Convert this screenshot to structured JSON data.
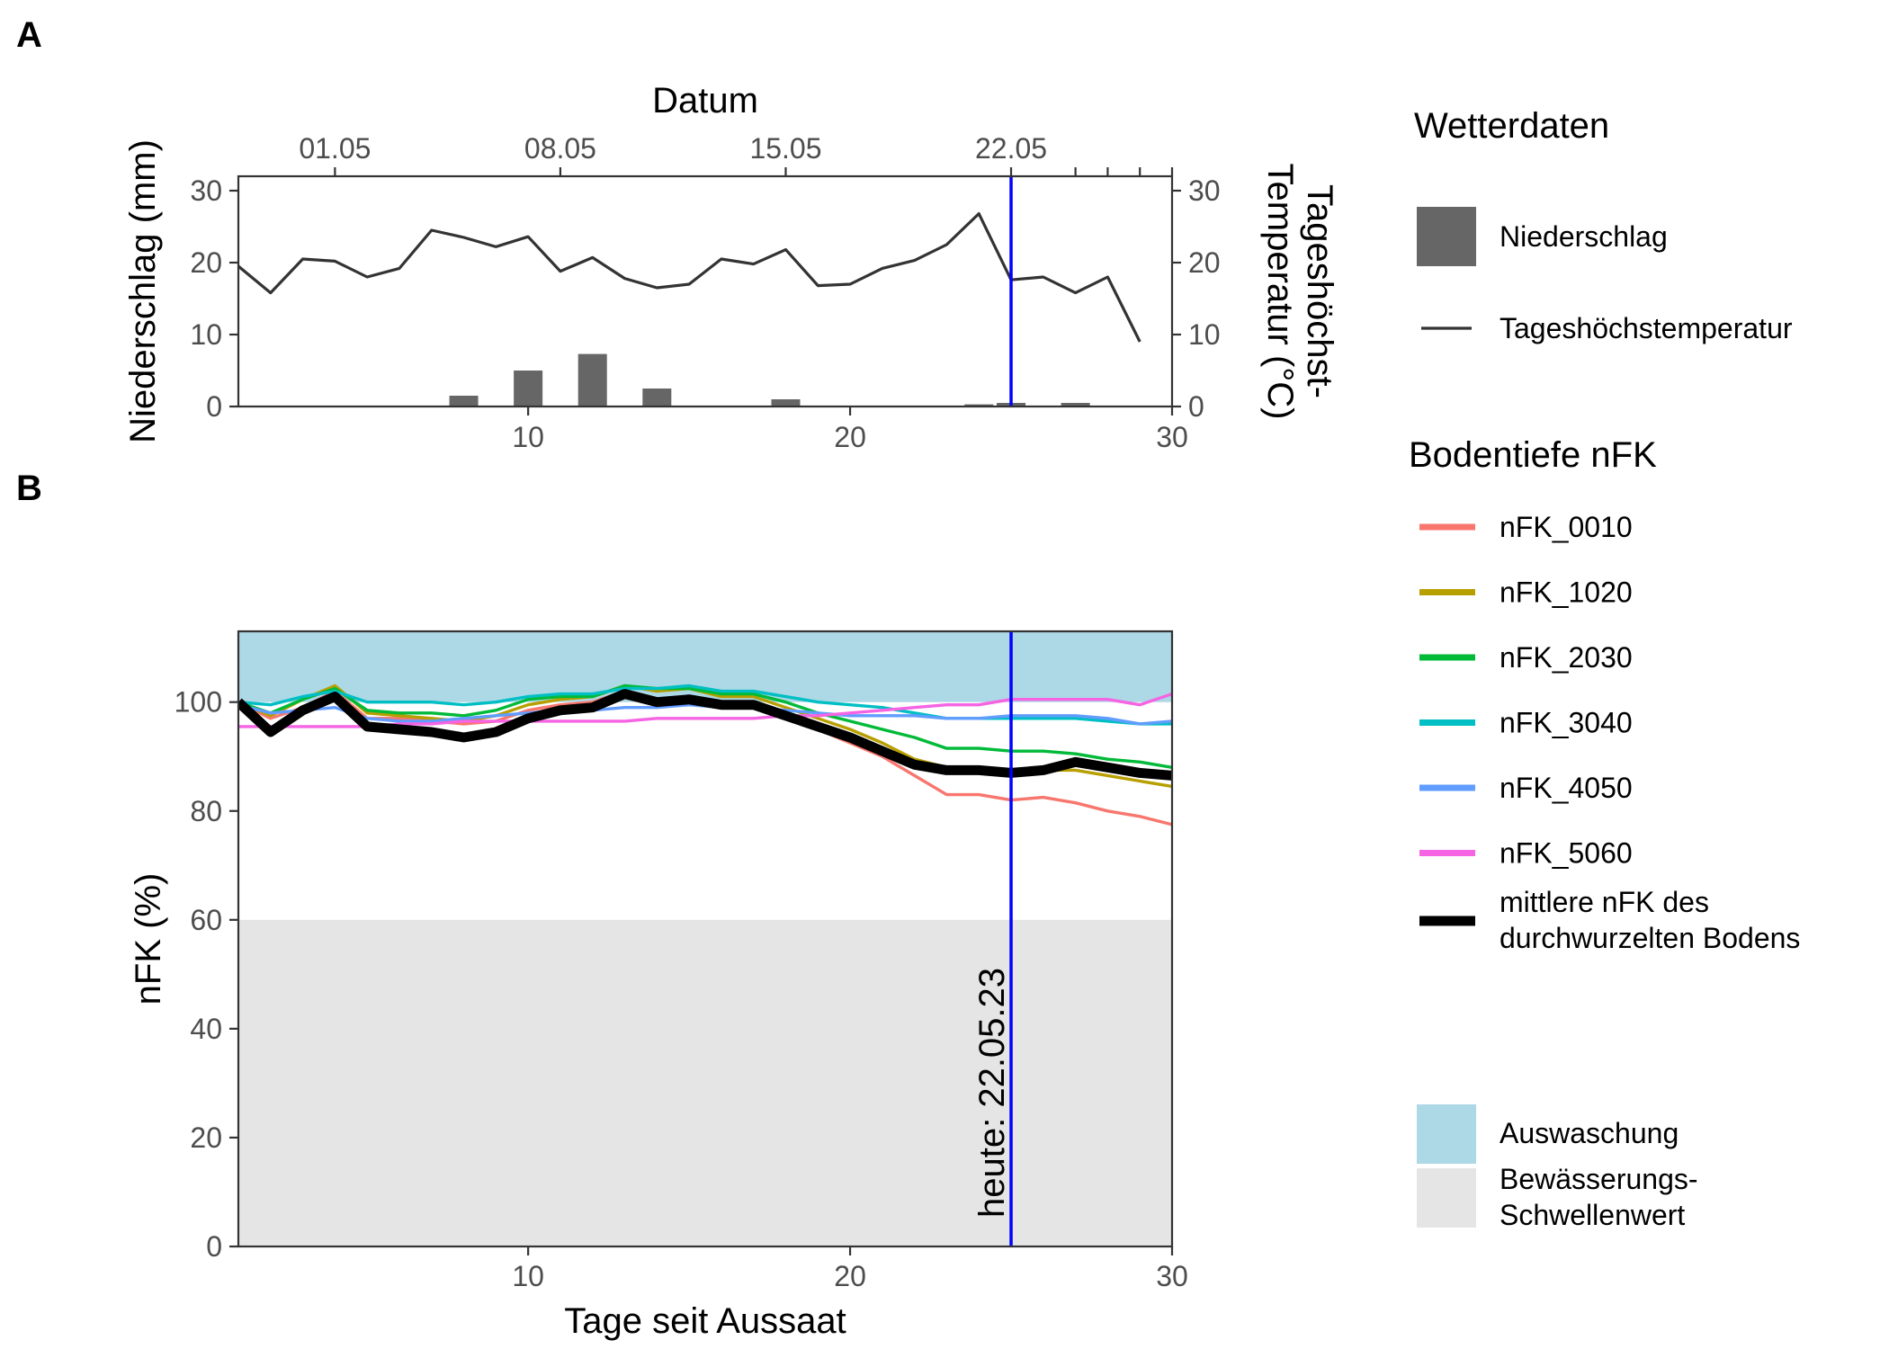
{
  "panel_a_label": "A",
  "panel_b_label": "B",
  "colors": {
    "precip": "#666666",
    "temp": "#333333",
    "today": "#0000ff",
    "leaching": "#add8e6",
    "threshold": "#e5e5e5",
    "mean": "#000000",
    "nFK_0010": "#F8766D",
    "nFK_1020": "#B79F00",
    "nFK_2030": "#00BA38",
    "nFK_3040": "#00BFC4",
    "nFK_4050": "#619CFF",
    "nFK_5060": "#F564E3"
  },
  "chart_data": [
    {
      "id": "A",
      "type": "bar+line",
      "xlabel_top": "Datum",
      "ylabel_left": "Niederschlag (mm)",
      "ylabel_right_line1": "Tageshöchst-",
      "ylabel_right_line2": "Temperatur (°C)",
      "xlim": [
        1,
        30
      ],
      "ylim": [
        0,
        32
      ],
      "x_ticks": [
        10,
        20,
        30
      ],
      "y_ticks": [
        0,
        10,
        20,
        30
      ],
      "date_ticks": [
        {
          "x": 4,
          "label": "01.05"
        },
        {
          "x": 11,
          "label": "08.05"
        },
        {
          "x": 18,
          "label": "15.05"
        },
        {
          "x": 25,
          "label": "22.05"
        },
        {
          "x": 27,
          "label": ""
        },
        {
          "x": 28,
          "label": ""
        },
        {
          "x": 29,
          "label": ""
        },
        {
          "x": 30,
          "label": ""
        }
      ],
      "today_x": 25,
      "precipitation": {
        "x": [
          4,
          8,
          10,
          12,
          14,
          18,
          24,
          25,
          27
        ],
        "values": [
          0.1,
          1.5,
          5.0,
          7.3,
          2.5,
          1.0,
          0.3,
          0.5,
          0.5
        ]
      },
      "temperature": {
        "x": [
          1,
          2,
          3,
          4,
          5,
          6,
          7,
          8,
          9,
          10,
          11,
          12,
          13,
          14,
          15,
          16,
          17,
          18,
          19,
          20,
          21,
          22,
          23,
          24,
          25,
          26,
          27,
          28,
          29
        ],
        "values": [
          19.5,
          15.8,
          20.5,
          20.2,
          18.0,
          19.2,
          24.5,
          23.5,
          22.2,
          23.6,
          18.8,
          20.7,
          17.8,
          16.5,
          17.0,
          20.5,
          19.8,
          21.8,
          16.8,
          17.0,
          19.2,
          20.3,
          22.5,
          26.8,
          17.6,
          18.0,
          15.8,
          18.0,
          9.0
        ]
      }
    },
    {
      "id": "B",
      "type": "line",
      "xlabel": "Tage seit Aussaat",
      "ylabel": "nFK (%)",
      "xlim": [
        1,
        30
      ],
      "ylim": [
        0,
        113
      ],
      "x_ticks": [
        10,
        20,
        30
      ],
      "y_ticks": [
        0,
        20,
        40,
        60,
        80,
        100
      ],
      "leaching_band": [
        100,
        113
      ],
      "threshold_band": [
        0,
        60
      ],
      "today_x": 25,
      "today_label": "heute: 22.05.23",
      "x": [
        1,
        2,
        3,
        4,
        5,
        6,
        7,
        8,
        9,
        10,
        11,
        12,
        13,
        14,
        15,
        16,
        17,
        18,
        19,
        20,
        21,
        22,
        23,
        24,
        25,
        26,
        27,
        28,
        29,
        30
      ],
      "series": [
        {
          "name": "nFK_0010",
          "values": [
            100,
            97,
            99,
            102,
            97,
            97,
            96.5,
            96,
            96.5,
            98.5,
            99.5,
            100,
            102,
            100.5,
            101,
            99.5,
            99.5,
            97.5,
            95,
            92.5,
            90,
            86.5,
            83,
            83,
            82,
            82.5,
            81.5,
            80,
            79,
            77.5
          ]
        },
        {
          "name": "nFK_1020",
          "values": [
            100,
            97.5,
            100.5,
            103,
            98,
            97.5,
            97,
            96.5,
            97.5,
            99.5,
            100.5,
            101,
            103,
            102,
            102.5,
            101,
            101,
            99,
            97,
            95,
            92.5,
            89.5,
            88,
            88,
            87,
            87.5,
            87.5,
            86.5,
            85.5,
            84.5
          ]
        },
        {
          "name": "nFK_2030",
          "values": [
            100,
            98,
            100.5,
            102.5,
            98.5,
            98,
            98,
            97.5,
            98.5,
            100.5,
            101,
            101,
            103,
            102.5,
            102.5,
            101.5,
            101.5,
            100,
            98,
            96.5,
            95,
            93.5,
            91.5,
            91.5,
            91,
            91,
            90.5,
            89.5,
            89,
            88
          ]
        },
        {
          "name": "nFK_3040",
          "values": [
            100,
            99.5,
            101,
            102,
            100,
            100,
            100,
            99.5,
            100,
            101,
            101.5,
            101.5,
            102.5,
            102.5,
            103,
            102,
            102,
            101,
            100,
            99.5,
            99,
            98,
            97,
            97,
            97,
            97,
            97,
            96.5,
            96,
            96
          ]
        },
        {
          "name": "nFK_4050",
          "values": [
            99.5,
            98,
            98.5,
            99,
            97,
            96.5,
            96.5,
            97,
            97.5,
            98,
            98.5,
            98.5,
            99,
            99,
            99.5,
            99,
            99,
            98.5,
            98,
            97.5,
            97.5,
            97.5,
            97,
            97,
            97.5,
            97.5,
            97.5,
            97,
            96,
            96.5
          ]
        },
        {
          "name": "nFK_5060",
          "values": [
            95.5,
            95.5,
            95.5,
            95.5,
            95.5,
            96,
            96,
            96.5,
            96.5,
            96.5,
            96.5,
            96.5,
            96.5,
            97,
            97,
            97,
            97,
            97.5,
            97.5,
            98,
            98.5,
            99,
            99.5,
            99.5,
            100.5,
            100.5,
            100.5,
            100.5,
            99.5,
            101.5
          ]
        },
        {
          "name": "mean",
          "values": [
            100,
            94.5,
            98.5,
            101,
            95.5,
            95,
            94.5,
            93.5,
            94.5,
            97,
            98.5,
            99,
            101.5,
            100,
            100.5,
            99.5,
            99.5,
            97.5,
            95.5,
            93.5,
            91,
            88.5,
            87.5,
            87.5,
            87,
            87.5,
            89,
            88,
            87,
            86.5
          ]
        }
      ]
    }
  ],
  "legend": {
    "weather_title": "Wetterdaten",
    "precip_label": "Niederschlag",
    "temp_label": "Tageshöchstemperatur",
    "soil_title": "Bodentiefe nFK",
    "soil_items": [
      {
        "key": "nFK_0010",
        "label": "nFK_0010"
      },
      {
        "key": "nFK_1020",
        "label": "nFK_1020"
      },
      {
        "key": "nFK_2030",
        "label": "nFK_2030"
      },
      {
        "key": "nFK_3040",
        "label": "nFK_3040"
      },
      {
        "key": "nFK_4050",
        "label": "nFK_4050"
      },
      {
        "key": "nFK_5060",
        "label": "nFK_5060"
      }
    ],
    "mean_label_line1": "mittlere nFK des",
    "mean_label_line2": "durchwurzelten Bodens",
    "leaching_label": "Auswaschung",
    "threshold_label_line1": "Bewässerungs-",
    "threshold_label_line2": "Schwellenwert"
  }
}
